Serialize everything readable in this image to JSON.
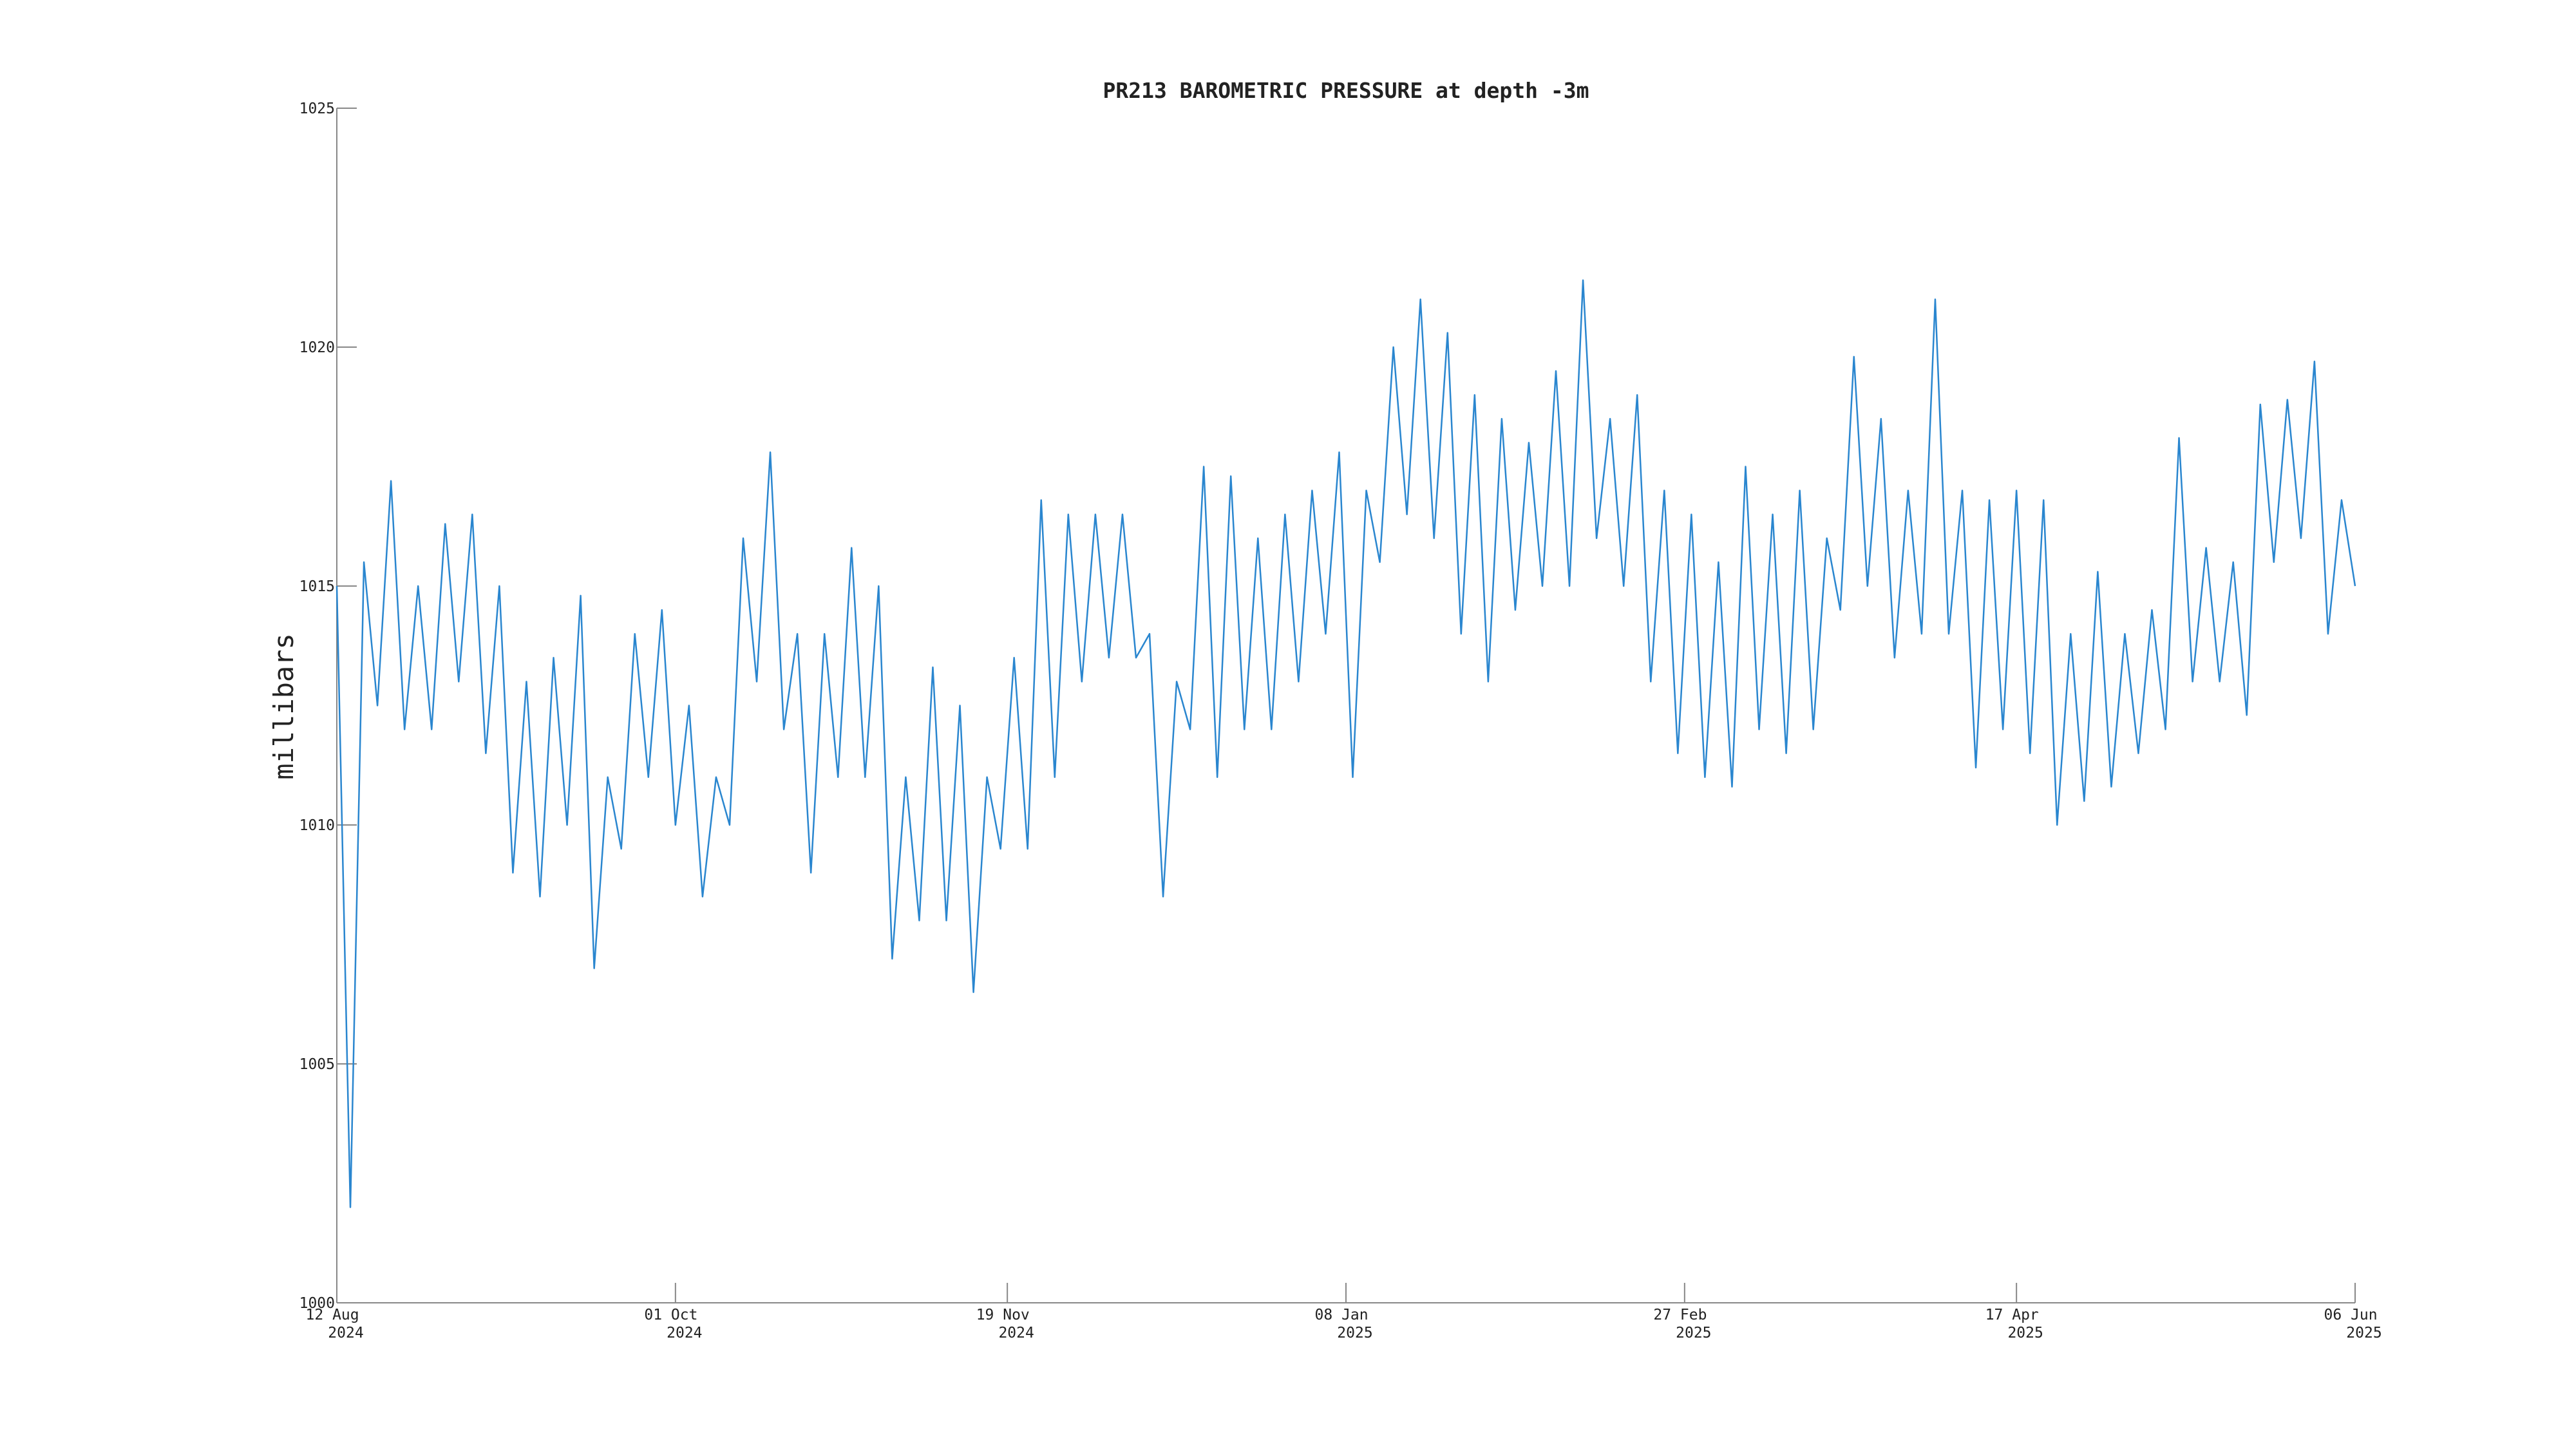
{
  "chart_data": {
    "type": "line",
    "title": "PR213 BAROMETRIC PRESSURE at depth -3m",
    "y_label": "millibars",
    "color": "#2a86cf",
    "x": [
      "2024-08-12",
      "2024-08-14",
      "2024-08-16",
      "2024-08-18",
      "2024-08-20",
      "2024-08-22",
      "2024-08-24",
      "2024-08-26",
      "2024-08-28",
      "2024-08-30",
      "2024-09-01",
      "2024-09-03",
      "2024-09-05",
      "2024-09-07",
      "2024-09-09",
      "2024-09-11",
      "2024-09-13",
      "2024-09-15",
      "2024-09-17",
      "2024-09-19",
      "2024-09-21",
      "2024-09-23",
      "2024-09-25",
      "2024-09-27",
      "2024-09-29",
      "2024-10-01",
      "2024-10-03",
      "2024-10-05",
      "2024-10-07",
      "2024-10-09",
      "2024-10-11",
      "2024-10-13",
      "2024-10-15",
      "2024-10-17",
      "2024-10-19",
      "2024-10-21",
      "2024-10-23",
      "2024-10-25",
      "2024-10-27",
      "2024-10-29",
      "2024-10-31",
      "2024-11-02",
      "2024-11-04",
      "2024-11-06",
      "2024-11-08",
      "2024-11-10",
      "2024-11-12",
      "2024-11-14",
      "2024-11-16",
      "2024-11-18",
      "2024-11-20",
      "2024-11-22",
      "2024-11-24",
      "2024-11-26",
      "2024-11-28",
      "2024-11-30",
      "2024-12-02",
      "2024-12-04",
      "2024-12-06",
      "2024-12-08",
      "2024-12-10",
      "2024-12-12",
      "2024-12-14",
      "2024-12-16",
      "2024-12-18",
      "2024-12-20",
      "2024-12-22",
      "2024-12-24",
      "2024-12-26",
      "2024-12-28",
      "2024-12-30",
      "2025-01-01",
      "2025-01-03",
      "2025-01-05",
      "2025-01-07",
      "2025-01-09",
      "2025-01-11",
      "2025-01-13",
      "2025-01-15",
      "2025-01-17",
      "2025-01-19",
      "2025-01-21",
      "2025-01-23",
      "2025-01-25",
      "2025-01-27",
      "2025-01-29",
      "2025-01-31",
      "2025-02-02",
      "2025-02-04",
      "2025-02-06",
      "2025-02-08",
      "2025-02-10",
      "2025-02-12",
      "2025-02-14",
      "2025-02-16",
      "2025-02-18",
      "2025-02-20",
      "2025-02-22",
      "2025-02-24",
      "2025-02-26",
      "2025-02-28",
      "2025-03-02",
      "2025-03-04",
      "2025-03-06",
      "2025-03-08",
      "2025-03-10",
      "2025-03-12",
      "2025-03-14",
      "2025-03-16",
      "2025-03-18",
      "2025-03-20",
      "2025-03-22",
      "2025-03-24",
      "2025-03-26",
      "2025-03-28",
      "2025-03-30",
      "2025-04-01",
      "2025-04-03",
      "2025-04-05",
      "2025-04-07",
      "2025-04-09",
      "2025-04-11",
      "2025-04-13",
      "2025-04-15",
      "2025-04-17",
      "2025-04-19",
      "2025-04-21",
      "2025-04-23",
      "2025-04-25",
      "2025-04-27",
      "2025-04-29",
      "2025-05-01",
      "2025-05-03",
      "2025-05-05",
      "2025-05-07",
      "2025-05-09",
      "2025-05-11",
      "2025-05-13",
      "2025-05-15",
      "2025-05-17",
      "2025-05-19",
      "2025-05-21",
      "2025-05-23",
      "2025-05-25",
      "2025-05-27",
      "2025-05-29",
      "2025-05-31",
      "2025-06-02",
      "2025-06-04",
      "2025-06-06"
    ],
    "values": [
      1015,
      1002,
      1015.5,
      1012.5,
      1017.2,
      1012,
      1015,
      1012,
      1016.3,
      1013,
      1016.5,
      1011.5,
      1015,
      1009,
      1013,
      1008.5,
      1013.5,
      1010,
      1014.8,
      1007,
      1011,
      1009.5,
      1014,
      1011,
      1014.5,
      1010,
      1012.5,
      1008.5,
      1011,
      1010,
      1016,
      1013,
      1017.8,
      1012,
      1014,
      1009,
      1014,
      1011,
      1015.8,
      1011,
      1015,
      1007.2,
      1011,
      1008,
      1013.3,
      1008,
      1012.5,
      1006.5,
      1011,
      1009.5,
      1013.5,
      1009.5,
      1016.8,
      1011,
      1016.5,
      1013,
      1016.5,
      1013.5,
      1016.5,
      1013.5,
      1014,
      1008.5,
      1013,
      1012,
      1017.5,
      1011,
      1017.3,
      1012,
      1016,
      1012,
      1016.5,
      1013,
      1017,
      1014,
      1017.8,
      1011,
      1017,
      1015.5,
      1020,
      1016.5,
      1021,
      1016,
      1020.3,
      1014,
      1019,
      1013,
      1018.5,
      1014.5,
      1018,
      1015,
      1019.5,
      1015,
      1021.4,
      1016,
      1018.5,
      1015,
      1019,
      1013,
      1017,
      1011.5,
      1016.5,
      1011,
      1015.5,
      1010.8,
      1017.5,
      1012,
      1016.5,
      1011.5,
      1017,
      1012,
      1016,
      1014.5,
      1019.8,
      1015,
      1018.5,
      1013.5,
      1017,
      1014,
      1021,
      1014,
      1017,
      1011.2,
      1016.8,
      1012,
      1017,
      1011.5,
      1016.8,
      1010,
      1014,
      1010.5,
      1015.3,
      1010.8,
      1014,
      1011.5,
      1014.5,
      1012,
      1018.1,
      1013,
      1015.8,
      1013,
      1015.5,
      1012.3,
      1018.8,
      1015.5,
      1018.9,
      1016,
      1019.7,
      1014,
      1016.8,
      1015
    ],
    "xlim": [
      "2024-08-12",
      "2025-06-06"
    ],
    "xticks": [
      {
        "value": "2024-08-12",
        "label": "12 Aug 2024"
      },
      {
        "value": "2024-10-01",
        "label": "01 Oct 2024"
      },
      {
        "value": "2024-11-19",
        "label": "19 Nov 2024"
      },
      {
        "value": "2025-01-08",
        "label": "08 Jan 2025"
      },
      {
        "value": "2025-02-27",
        "label": "27 Feb 2025"
      },
      {
        "value": "2025-04-17",
        "label": "17 Apr 2025"
      },
      {
        "value": "2025-06-06",
        "label": "06 Jun 2025"
      }
    ],
    "ylim": [
      1000,
      1025
    ],
    "yticks": [
      1000,
      1005,
      1010,
      1015,
      1020,
      1025
    ],
    "grid": false
  }
}
